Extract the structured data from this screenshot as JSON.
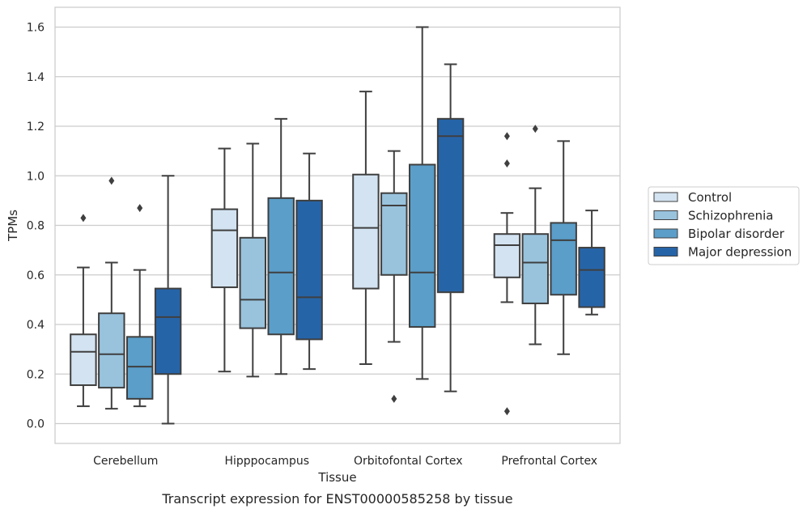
{
  "chart_data": {
    "type": "box",
    "xlabel": "Tissue",
    "ylabel": "TPMs",
    "caption": "Transcript expression for ENST00000585258 by tissue",
    "ylim": [
      -0.08,
      1.68
    ],
    "yticks": [
      "0.0",
      "0.2",
      "0.4",
      "0.6",
      "0.8",
      "1.0",
      "1.2",
      "1.4",
      "1.6"
    ],
    "grid": "horizontal",
    "legend_position": "right",
    "categories": [
      "Cerebellum",
      "Hipppocampus",
      "Orbitofontal Cortex",
      "Prefrontal Cortex"
    ],
    "series": [
      {
        "name": "Control",
        "color": "#d3e3f1",
        "boxes": [
          {
            "whislo": 0.07,
            "q1": 0.155,
            "med": 0.29,
            "q3": 0.36,
            "whishi": 0.63,
            "fliers": [
              0.83
            ]
          },
          {
            "whislo": 0.21,
            "q1": 0.55,
            "med": 0.78,
            "q3": 0.865,
            "whishi": 1.11,
            "fliers": []
          },
          {
            "whislo": 0.24,
            "q1": 0.545,
            "med": 0.79,
            "q3": 1.005,
            "whishi": 1.34,
            "fliers": []
          },
          {
            "whislo": 0.49,
            "q1": 0.59,
            "med": 0.72,
            "q3": 0.765,
            "whishi": 0.85,
            "fliers": [
              1.16,
              1.05,
              0.05
            ]
          }
        ]
      },
      {
        "name": "Schizophrenia",
        "color": "#99c3dd",
        "boxes": [
          {
            "whislo": 0.06,
            "q1": 0.145,
            "med": 0.28,
            "q3": 0.445,
            "whishi": 0.65,
            "fliers": [
              0.98
            ]
          },
          {
            "whislo": 0.19,
            "q1": 0.385,
            "med": 0.5,
            "q3": 0.75,
            "whishi": 1.13,
            "fliers": []
          },
          {
            "whislo": 0.33,
            "q1": 0.6,
            "med": 0.88,
            "q3": 0.93,
            "whishi": 1.1,
            "fliers": [
              0.1
            ]
          },
          {
            "whislo": 0.32,
            "q1": 0.485,
            "med": 0.65,
            "q3": 0.765,
            "whishi": 0.95,
            "fliers": [
              1.19
            ]
          }
        ]
      },
      {
        "name": "Bipolar disorder",
        "color": "#5a9ec9",
        "boxes": [
          {
            "whislo": 0.07,
            "q1": 0.1,
            "med": 0.23,
            "q3": 0.35,
            "whishi": 0.62,
            "fliers": [
              0.87
            ]
          },
          {
            "whislo": 0.2,
            "q1": 0.36,
            "med": 0.61,
            "q3": 0.91,
            "whishi": 1.23,
            "fliers": []
          },
          {
            "whislo": 0.18,
            "q1": 0.39,
            "med": 0.61,
            "q3": 1.045,
            "whishi": 1.6,
            "fliers": []
          },
          {
            "whislo": 0.28,
            "q1": 0.52,
            "med": 0.74,
            "q3": 0.81,
            "whishi": 1.14,
            "fliers": []
          }
        ]
      },
      {
        "name": "Major depression",
        "color": "#2664a8",
        "boxes": [
          {
            "whislo": 0.0,
            "q1": 0.2,
            "med": 0.43,
            "q3": 0.545,
            "whishi": 1.0,
            "fliers": []
          },
          {
            "whislo": 0.22,
            "q1": 0.34,
            "med": 0.51,
            "q3": 0.9,
            "whishi": 1.09,
            "fliers": []
          },
          {
            "whislo": 0.13,
            "q1": 0.53,
            "med": 1.16,
            "q3": 1.23,
            "whishi": 1.45,
            "fliers": []
          },
          {
            "whislo": 0.44,
            "q1": 0.47,
            "med": 0.62,
            "q3": 0.71,
            "whishi": 0.86,
            "fliers": []
          }
        ]
      }
    ]
  }
}
